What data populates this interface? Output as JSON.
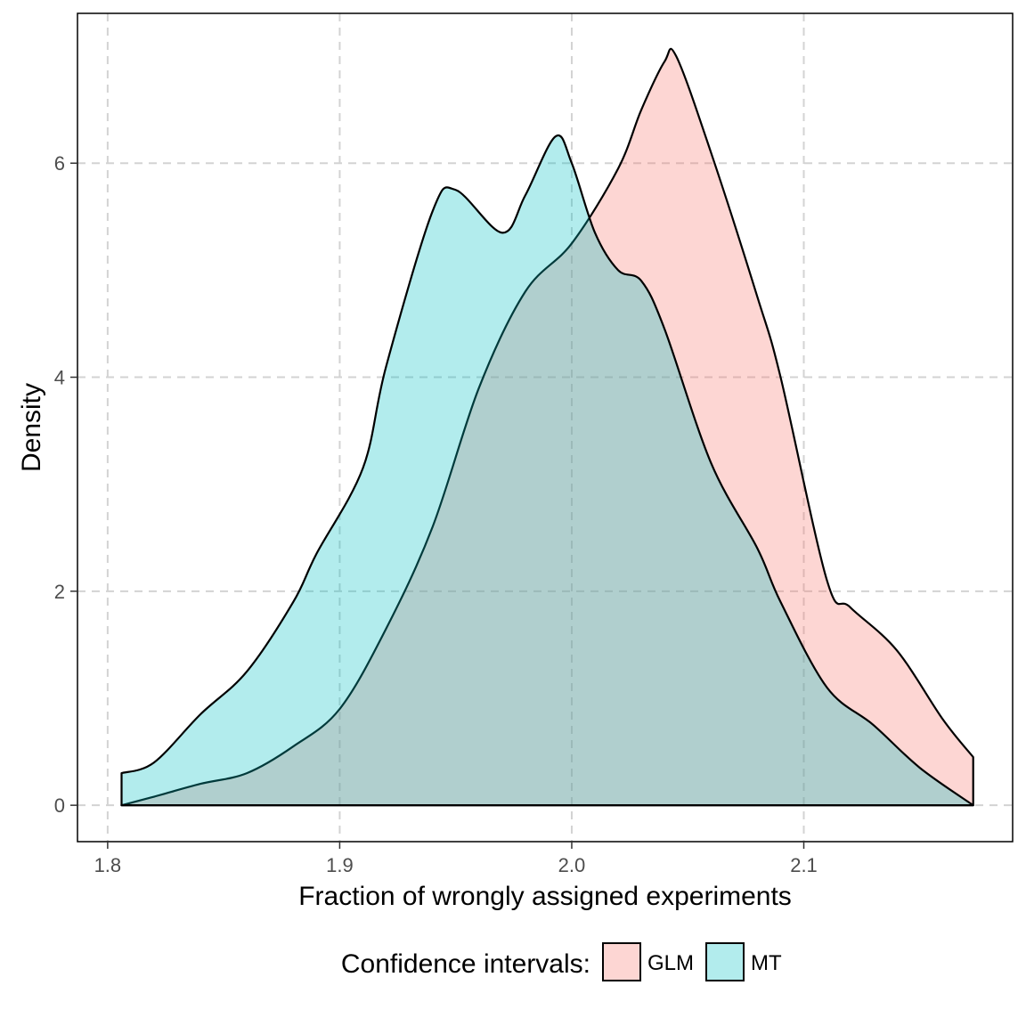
{
  "chart_data": {
    "type": "area",
    "title": "",
    "xlabel": "Fraction of wrongly assigned experiments",
    "ylabel": "Density",
    "xlim": [
      1.787,
      2.19
    ],
    "ylim": [
      -0.34,
      7.4
    ],
    "x_ticks": [
      1.8,
      1.9,
      2.0,
      2.1
    ],
    "x_tick_labels": [
      "1.8",
      "1.9",
      "2.0",
      "2.1"
    ],
    "y_ticks": [
      0,
      2,
      4,
      6
    ],
    "y_tick_labels": [
      "0",
      "2",
      "4",
      "6"
    ],
    "grid": true,
    "legend": {
      "title": "Confidence intervals:",
      "position": "bottom",
      "entries": [
        "GLM",
        "MT"
      ]
    },
    "series": [
      {
        "name": "GLM",
        "color": "#F8766D",
        "x": [
          1.806,
          1.82,
          1.84,
          1.86,
          1.88,
          1.9,
          1.92,
          1.94,
          1.96,
          1.98,
          2.0,
          2.02,
          2.03,
          2.04,
          2.045,
          2.06,
          2.08,
          2.09,
          2.11,
          2.12,
          2.14,
          2.16,
          2.173
        ],
        "y": [
          0.0,
          0.08,
          0.2,
          0.3,
          0.55,
          0.9,
          1.65,
          2.6,
          3.9,
          4.8,
          5.25,
          5.95,
          6.5,
          6.95,
          7.0,
          6.1,
          4.75,
          4.0,
          2.1,
          1.85,
          1.45,
          0.8,
          0.45
        ]
      },
      {
        "name": "MT",
        "color": "#00BFC4",
        "x": [
          1.806,
          1.82,
          1.84,
          1.86,
          1.88,
          1.89,
          1.91,
          1.92,
          1.94,
          1.95,
          1.97,
          1.98,
          1.993,
          2.0,
          2.01,
          2.02,
          2.03,
          2.04,
          2.06,
          2.08,
          2.09,
          2.11,
          2.13,
          2.15,
          2.173
        ],
        "y": [
          0.3,
          0.4,
          0.85,
          1.25,
          1.9,
          2.35,
          3.15,
          4.1,
          5.55,
          5.75,
          5.35,
          5.7,
          6.25,
          6.0,
          5.35,
          5.0,
          4.9,
          4.45,
          3.2,
          2.4,
          1.9,
          1.1,
          0.75,
          0.35,
          0.0
        ]
      }
    ]
  }
}
